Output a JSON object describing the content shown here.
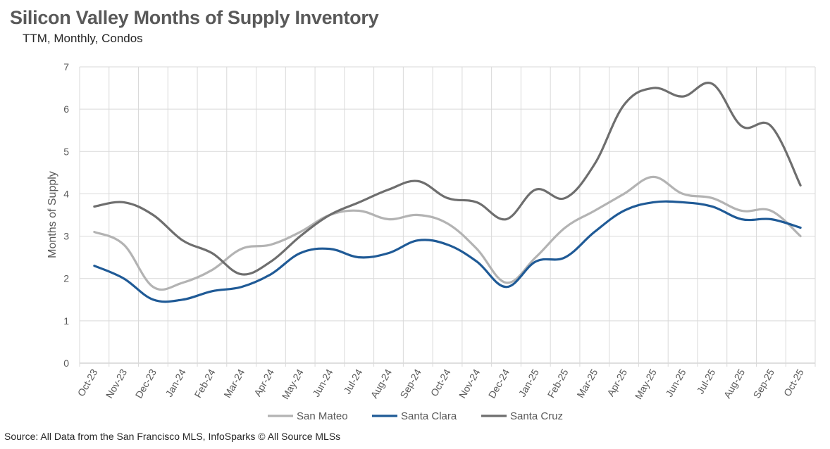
{
  "title": "Silicon Valley Months of Supply Inventory",
  "subtitle": "TTM, Monthly, Condos",
  "source": "Source: All Data from the San Francisco MLS, InfoSparks © All Source MLSs",
  "chart_data": {
    "type": "line",
    "title": "Silicon Valley Months of Supply Inventory",
    "subtitle": "TTM, Monthly, Condos",
    "xlabel": "",
    "ylabel": "Months of Supply",
    "ylim": [
      0,
      7
    ],
    "yticks": [
      0,
      1,
      2,
      3,
      4,
      5,
      6,
      7
    ],
    "grid": true,
    "legend_position": "bottom",
    "categories": [
      "Oct-23",
      "Nov-23",
      "Dec-23",
      "Jan-24",
      "Feb-24",
      "Mar-24",
      "Apr-24",
      "May-24",
      "Jun-24",
      "Jul-24",
      "Aug-24",
      "Sep-24",
      "Oct-24",
      "Nov-24",
      "Dec-24",
      "Jan-25",
      "Feb-25",
      "Mar-25",
      "Apr-25",
      "May-25",
      "Jun-25",
      "Jul-25",
      "Aug-25",
      "Sep-25",
      "Oct-25"
    ],
    "series": [
      {
        "name": "San Mateo",
        "color": "#b3b3b3",
        "values": [
          3.1,
          2.8,
          1.8,
          1.9,
          2.2,
          2.7,
          2.8,
          3.1,
          3.5,
          3.6,
          3.4,
          3.5,
          3.3,
          2.7,
          1.9,
          2.5,
          3.2,
          3.6,
          4.0,
          4.4,
          4.0,
          3.9,
          3.6,
          3.6,
          3.0
        ]
      },
      {
        "name": "Santa Clara",
        "color": "#1f5a96",
        "values": [
          2.3,
          2.0,
          1.5,
          1.5,
          1.7,
          1.8,
          2.1,
          2.6,
          2.7,
          2.5,
          2.6,
          2.9,
          2.8,
          2.4,
          1.8,
          2.4,
          2.5,
          3.1,
          3.6,
          3.8,
          3.8,
          3.7,
          3.4,
          3.4,
          3.2
        ]
      },
      {
        "name": "Santa Cruz",
        "color": "#6e6e6e",
        "values": [
          3.7,
          3.8,
          3.5,
          2.9,
          2.6,
          2.1,
          2.4,
          3.0,
          3.5,
          3.8,
          4.1,
          4.3,
          3.9,
          3.8,
          3.4,
          4.1,
          3.9,
          4.7,
          6.1,
          6.5,
          6.3,
          6.6,
          5.6,
          5.6,
          4.2
        ]
      }
    ]
  }
}
